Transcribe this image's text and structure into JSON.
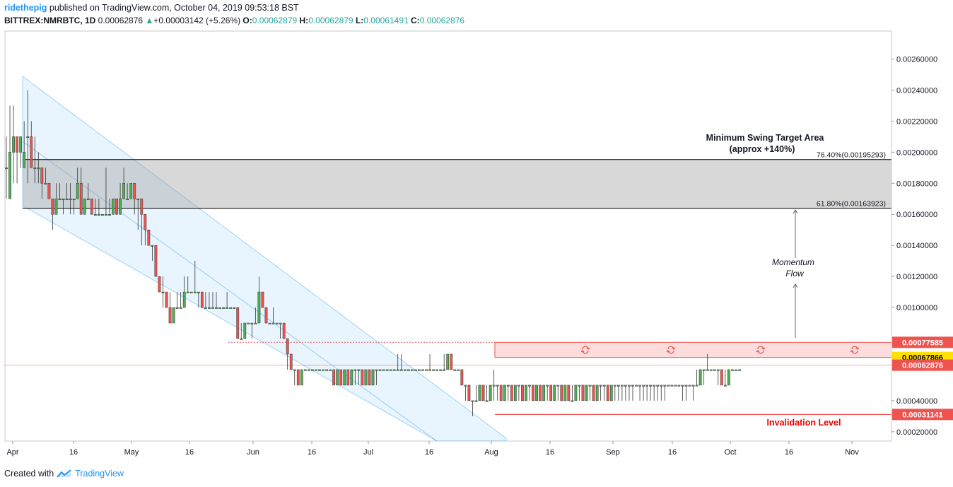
{
  "header": {
    "user": "ridethepig",
    "published": "published on TradingView.com, October 04, 2019 09:53:18 BST",
    "symbol": "BITTREX:NMRBTC, 1D",
    "last": "0.00062876",
    "change_arrow": "▲",
    "change": "+0.00003142 (+5.26%)",
    "o_label": "O:",
    "o": "0.00062879",
    "h_label": "H:",
    "h": "0.00062879",
    "l_label": "L:",
    "l": "0.00061491",
    "c_label": "C:",
    "c": "0.00062876"
  },
  "footer": {
    "created_with": "Created with",
    "brand": "TradingView"
  },
  "colors": {
    "up": "#4caf50",
    "down": "#ef5350",
    "accent": "#2196f3",
    "zone": "#d3d3d3",
    "resistance": "#ef5350",
    "current_line": "#ffe000"
  },
  "chart_data": {
    "type": "candlestick",
    "y_axis": {
      "ticks": [
        0.0002,
        0.0004,
        0.001,
        0.0012,
        0.0014,
        0.0016,
        0.0018,
        0.002,
        0.0022,
        0.0024,
        0.0026
      ],
      "tick_labels": [
        "0.00020000",
        "0.00040000",
        "0.00100000",
        "0.00120000",
        "0.00140000",
        "0.00160000",
        "0.00180000",
        "0.00200000",
        "0.00220000",
        "0.00240000",
        "0.00260000"
      ],
      "range": [
        0.00014,
        0.00278
      ]
    },
    "x_axis": {
      "labels": [
        "Apr",
        "16",
        "May",
        "16",
        "Jun",
        "16",
        "Jul",
        "16",
        "Aug",
        "16",
        "Sep",
        "16",
        "Oct",
        "16",
        "Nov"
      ]
    },
    "price_tags": [
      {
        "label": "0.00077585",
        "value": 0.00077585,
        "style": "red"
      },
      {
        "label": "0.00067866",
        "value": 0.00067866,
        "style": "yellow"
      },
      {
        "label": "0.00062876",
        "value": 0.00062876,
        "style": "red"
      },
      {
        "label": "0.00031141",
        "value": 0.00031141,
        "style": "red"
      }
    ],
    "fib_levels": [
      {
        "label": "76.40%(0.00195293)",
        "value": 0.00195293
      },
      {
        "label": "61.80%(0.00163923)",
        "value": 0.00163923
      }
    ],
    "annotations": {
      "target_title": "Minimum Swing Target Area",
      "target_sub": "(approx +140%)",
      "momentum_1": "Momentum",
      "momentum_2": "Flow",
      "invalidation": "Invalidation Level"
    },
    "candles": [
      [
        0.0019,
        0.0019,
        0.0021,
        0.0017
      ],
      [
        0.0017,
        0.002,
        0.0023,
        0.0017
      ],
      [
        0.002,
        0.0021,
        0.0023,
        0.0018
      ],
      [
        0.0021,
        0.002,
        0.0021,
        0.0018
      ],
      [
        0.002,
        0.0021,
        0.0021,
        0.0019
      ],
      [
        0.0019,
        0.002,
        0.0022,
        0.0019
      ],
      [
        0.0021,
        0.0021,
        0.0024,
        0.0018
      ],
      [
        0.0021,
        0.0019,
        0.0022,
        0.0019
      ],
      [
        0.0019,
        0.0019,
        0.0021,
        0.0018
      ],
      [
        0.0019,
        0.0019,
        0.002,
        0.0018
      ],
      [
        0.0019,
        0.0018,
        0.0019,
        0.0017
      ],
      [
        0.0018,
        0.0018,
        0.0019,
        0.0018
      ],
      [
        0.0018,
        0.0017,
        0.0018,
        0.0017
      ],
      [
        0.0017,
        0.0016,
        0.0017,
        0.0015
      ],
      [
        0.0016,
        0.0017,
        0.0018,
        0.0016
      ],
      [
        0.0017,
        0.0017,
        0.0018,
        0.0017
      ],
      [
        0.0017,
        0.0017,
        0.0017,
        0.0016
      ],
      [
        0.0017,
        0.0017,
        0.0018,
        0.0017
      ],
      [
        0.0017,
        0.0017,
        0.0018,
        0.0016
      ],
      [
        0.0017,
        0.0017,
        0.0017,
        0.0016
      ],
      [
        0.0017,
        0.0018,
        0.0019,
        0.0017
      ],
      [
        0.0018,
        0.0016,
        0.0019,
        0.0016
      ],
      [
        0.0016,
        0.0017,
        0.0017,
        0.0016
      ],
      [
        0.0017,
        0.0017,
        0.0018,
        0.0017
      ],
      [
        0.0017,
        0.0016,
        0.0017,
        0.0016
      ],
      [
        0.0016,
        0.0016,
        0.0017,
        0.0016
      ],
      [
        0.0016,
        0.0016,
        0.0017,
        0.0016
      ],
      [
        0.0016,
        0.0016,
        0.0016,
        0.0016
      ],
      [
        0.0016,
        0.0016,
        0.0019,
        0.0016
      ],
      [
        0.0016,
        0.0016,
        0.0017,
        0.0016
      ],
      [
        0.0016,
        0.0017,
        0.0017,
        0.0016
      ],
      [
        0.0017,
        0.0016,
        0.0017,
        0.0016
      ],
      [
        0.0016,
        0.0017,
        0.0018,
        0.0016
      ],
      [
        0.0017,
        0.0018,
        0.0019,
        0.0017
      ],
      [
        0.0017,
        0.0017,
        0.0018,
        0.0017
      ],
      [
        0.0017,
        0.0018,
        0.0018,
        0.0017
      ],
      [
        0.0018,
        0.0017,
        0.0018,
        0.0016
      ],
      [
        0.0017,
        0.0017,
        0.0017,
        0.0015
      ],
      [
        0.0017,
        0.0016,
        0.0017,
        0.0014
      ],
      [
        0.0016,
        0.0015,
        0.0015,
        0.0014
      ],
      [
        0.0015,
        0.0014,
        0.0015,
        0.0014
      ],
      [
        0.0014,
        0.0014,
        0.0014,
        0.0013
      ],
      [
        0.0014,
        0.0012,
        0.0014,
        0.0012
      ],
      [
        0.0012,
        0.0011,
        0.0012,
        0.0011
      ],
      [
        0.0011,
        0.0011,
        0.0012,
        0.001
      ],
      [
        0.0011,
        0.001,
        0.0011,
        0.001
      ],
      [
        0.001,
        0.0009,
        0.0011,
        0.0009
      ],
      [
        0.0009,
        0.001,
        0.001,
        0.0009
      ],
      [
        0.001,
        0.001,
        0.0011,
        0.001
      ],
      [
        0.001,
        0.001,
        0.0011,
        0.001
      ],
      [
        0.001,
        0.0011,
        0.0012,
        0.001
      ],
      [
        0.0011,
        0.0011,
        0.0012,
        0.0011
      ],
      [
        0.0011,
        0.0011,
        0.0011,
        0.0011
      ],
      [
        0.0011,
        0.0011,
        0.0013,
        0.0011
      ],
      [
        0.0011,
        0.0011,
        0.0011,
        0.001
      ],
      [
        0.0011,
        0.001,
        0.0011,
        0.001
      ],
      [
        0.001,
        0.001,
        0.0011,
        0.001
      ],
      [
        0.001,
        0.001,
        0.0011,
        0.001
      ],
      [
        0.001,
        0.001,
        0.0011,
        0.001
      ],
      [
        0.001,
        0.001,
        0.0011,
        0.001
      ],
      [
        0.001,
        0.001,
        0.001,
        0.001
      ],
      [
        0.001,
        0.001,
        0.001,
        0.001
      ],
      [
        0.001,
        0.001,
        0.0011,
        0.001
      ],
      [
        0.001,
        0.001,
        0.001,
        0.001
      ],
      [
        0.001,
        0.001,
        0.001,
        0.001
      ],
      [
        0.001,
        0.0008,
        0.001,
        0.0008
      ],
      [
        0.0008,
        0.0008,
        0.0009,
        0.0008
      ],
      [
        0.0008,
        0.0009,
        0.0009,
        0.0008
      ],
      [
        0.0009,
        0.0009,
        0.0009,
        0.0009
      ],
      [
        0.0009,
        0.0009,
        0.0009,
        0.0008
      ],
      [
        0.0009,
        0.0009,
        0.001,
        0.0009
      ],
      [
        0.0009,
        0.0011,
        0.0012,
        0.0009
      ],
      [
        0.0011,
        0.001,
        0.0011,
        0.001
      ],
      [
        0.001,
        0.0009,
        0.001,
        0.0009
      ],
      [
        0.0009,
        0.0009,
        0.0009,
        0.0009
      ],
      [
        0.0009,
        0.0009,
        0.001,
        0.0009
      ],
      [
        0.0009,
        0.0009,
        0.0009,
        0.0009
      ],
      [
        0.0009,
        0.0009,
        0.0009,
        0.0008
      ],
      [
        0.0009,
        0.0008,
        0.0008,
        0.0008
      ],
      [
        0.0008,
        0.0007,
        0.0008,
        0.0006
      ],
      [
        0.0007,
        0.0006,
        0.0007,
        0.0006
      ],
      [
        0.0006,
        0.0006,
        0.0006,
        0.0005
      ],
      [
        0.0006,
        0.0005,
        0.0006,
        0.0005
      ],
      [
        0.0005,
        0.0006,
        0.0006,
        0.0005
      ],
      [
        0.0006,
        0.0006,
        0.0006,
        0.0006
      ],
      [
        0.0006,
        0.0006,
        0.0006,
        0.0006
      ],
      [
        0.0006,
        0.0006,
        0.0006,
        0.0006
      ],
      [
        0.0006,
        0.0006,
        0.0006,
        0.0006
      ],
      [
        0.0006,
        0.0006,
        0.0006,
        0.0006
      ],
      [
        0.0006,
        0.0006,
        0.0006,
        0.0006
      ],
      [
        0.0006,
        0.0006,
        0.0006,
        0.0006
      ],
      [
        0.0006,
        0.0006,
        0.0006,
        0.0006
      ],
      [
        0.0006,
        0.0005,
        0.0006,
        0.0005
      ],
      [
        0.0005,
        0.0006,
        0.0006,
        0.0005
      ],
      [
        0.0006,
        0.0005,
        0.0006,
        0.0005
      ],
      [
        0.0005,
        0.0006,
        0.0006,
        0.0005
      ],
      [
        0.0006,
        0.0005,
        0.0006,
        0.0005
      ],
      [
        0.0005,
        0.0006,
        0.0006,
        0.0005
      ],
      [
        0.0006,
        0.0006,
        0.0006,
        0.0005
      ],
      [
        0.0006,
        0.0006,
        0.0006,
        0.0005
      ],
      [
        0.0006,
        0.0005,
        0.0006,
        0.0005
      ],
      [
        0.0005,
        0.0006,
        0.0006,
        0.0005
      ],
      [
        0.0006,
        0.0005,
        0.0006,
        0.0005
      ],
      [
        0.0005,
        0.0006,
        0.0006,
        0.0005
      ],
      [
        0.0006,
        0.0006,
        0.0006,
        0.0005
      ],
      [
        0.0006,
        0.0006,
        0.0006,
        0.0006
      ],
      [
        0.0006,
        0.0006,
        0.0006,
        0.0006
      ],
      [
        0.0006,
        0.0006,
        0.0006,
        0.0006
      ],
      [
        0.0006,
        0.0006,
        0.0006,
        0.0006
      ],
      [
        0.0006,
        0.0006,
        0.0006,
        0.0006
      ],
      [
        0.0006,
        0.0006,
        0.0007,
        0.0006
      ],
      [
        0.0006,
        0.0006,
        0.0007,
        0.0006
      ],
      [
        0.0006,
        0.0006,
        0.0006,
        0.0006
      ],
      [
        0.0006,
        0.0006,
        0.0006,
        0.0006
      ],
      [
        0.0006,
        0.0006,
        0.0006,
        0.0006
      ],
      [
        0.0006,
        0.0006,
        0.0006,
        0.0006
      ],
      [
        0.0006,
        0.0006,
        0.0006,
        0.0006
      ],
      [
        0.0006,
        0.0006,
        0.0006,
        0.0006
      ],
      [
        0.0006,
        0.0006,
        0.0006,
        0.0006
      ],
      [
        0.0006,
        0.0006,
        0.0007,
        0.0006
      ],
      [
        0.0006,
        0.0006,
        0.0006,
        0.0006
      ],
      [
        0.0006,
        0.0006,
        0.0006,
        0.0006
      ],
      [
        0.0006,
        0.0006,
        0.0006,
        0.0006
      ],
      [
        0.0006,
        0.0006,
        0.0007,
        0.0006
      ],
      [
        0.0006,
        0.0007,
        0.0007,
        0.0006
      ],
      [
        0.0007,
        0.0006,
        0.0007,
        0.0006
      ],
      [
        0.0006,
        0.0006,
        0.0006,
        0.0006
      ],
      [
        0.0006,
        0.0006,
        0.0006,
        0.0006
      ],
      [
        0.0006,
        0.0005,
        0.0006,
        0.0005
      ],
      [
        0.0005,
        0.0005,
        0.0005,
        0.0004
      ],
      [
        0.0005,
        0.0004,
        0.0005,
        0.0004
      ],
      [
        0.0004,
        0.0004,
        0.0004,
        0.0003
      ],
      [
        0.0004,
        0.0004,
        0.0005,
        0.0004
      ],
      [
        0.0004,
        0.0005,
        0.0005,
        0.0004
      ],
      [
        0.0005,
        0.0004,
        0.0005,
        0.0004
      ],
      [
        0.0004,
        0.0004,
        0.0005,
        0.0004
      ],
      [
        0.0004,
        0.0005,
        0.0005,
        0.0004
      ],
      [
        0.0005,
        0.0005,
        0.0006,
        0.0004
      ],
      [
        0.0005,
        0.0005,
        0.0005,
        0.0004
      ],
      [
        0.0005,
        0.0004,
        0.0005,
        0.0004
      ],
      [
        0.0004,
        0.0005,
        0.0005,
        0.0004
      ],
      [
        0.0005,
        0.0005,
        0.0005,
        0.0004
      ],
      [
        0.0005,
        0.0004,
        0.0005,
        0.0004
      ],
      [
        0.0004,
        0.0005,
        0.0005,
        0.0004
      ],
      [
        0.0005,
        0.0005,
        0.0005,
        0.0004
      ],
      [
        0.0005,
        0.0004,
        0.0005,
        0.0004
      ],
      [
        0.0004,
        0.0005,
        0.0005,
        0.0004
      ],
      [
        0.0005,
        0.0005,
        0.0005,
        0.0004
      ],
      [
        0.0005,
        0.0004,
        0.0005,
        0.0004
      ],
      [
        0.0004,
        0.0005,
        0.0005,
        0.0004
      ],
      [
        0.0005,
        0.0004,
        0.0005,
        0.0004
      ],
      [
        0.0004,
        0.0005,
        0.0005,
        0.0004
      ],
      [
        0.0005,
        0.0005,
        0.0005,
        0.0004
      ],
      [
        0.0005,
        0.0004,
        0.0005,
        0.0004
      ],
      [
        0.0004,
        0.0005,
        0.0005,
        0.0004
      ],
      [
        0.0005,
        0.0005,
        0.0005,
        0.0004
      ],
      [
        0.0005,
        0.0004,
        0.0005,
        0.0004
      ],
      [
        0.0004,
        0.0005,
        0.0005,
        0.0004
      ],
      [
        0.0005,
        0.0004,
        0.0005,
        0.0004
      ],
      [
        0.0004,
        0.0004,
        0.0005,
        0.0004
      ],
      [
        0.0004,
        0.0005,
        0.0005,
        0.0004
      ],
      [
        0.0005,
        0.0005,
        0.0005,
        0.0004
      ],
      [
        0.0005,
        0.0004,
        0.0005,
        0.0004
      ],
      [
        0.0004,
        0.0005,
        0.0005,
        0.0004
      ],
      [
        0.0005,
        0.0005,
        0.0005,
        0.0004
      ],
      [
        0.0005,
        0.0004,
        0.0005,
        0.0004
      ],
      [
        0.0004,
        0.0005,
        0.0005,
        0.0004
      ],
      [
        0.0005,
        0.0005,
        0.0005,
        0.0004
      ],
      [
        0.0005,
        0.0005,
        0.0005,
        0.0004
      ],
      [
        0.0005,
        0.0004,
        0.0005,
        0.0004
      ],
      [
        0.0004,
        0.0005,
        0.0005,
        0.0004
      ],
      [
        0.0005,
        0.0005,
        0.0005,
        0.0004
      ],
      [
        0.0005,
        0.0005,
        0.0005,
        0.0004
      ],
      [
        0.0005,
        0.0005,
        0.0005,
        0.0004
      ],
      [
        0.0005,
        0.0005,
        0.0005,
        0.0004
      ],
      [
        0.0005,
        0.0005,
        0.0005,
        0.0004
      ],
      [
        0.0005,
        0.0005,
        0.0005,
        0.0004
      ],
      [
        0.0005,
        0.0005,
        0.0005,
        0.0005
      ],
      [
        0.0005,
        0.0005,
        0.0005,
        0.0004
      ],
      [
        0.0005,
        0.0005,
        0.0005,
        0.0004
      ],
      [
        0.0005,
        0.0005,
        0.0005,
        0.0004
      ],
      [
        0.0005,
        0.0005,
        0.0005,
        0.0004
      ],
      [
        0.0005,
        0.0005,
        0.0005,
        0.0004
      ],
      [
        0.0005,
        0.0005,
        0.0005,
        0.0004
      ],
      [
        0.0005,
        0.0005,
        0.0005,
        0.0004
      ],
      [
        0.0005,
        0.0005,
        0.0005,
        0.0004
      ],
      [
        0.0005,
        0.0005,
        0.0005,
        0.0005
      ],
      [
        0.0005,
        0.0005,
        0.0005,
        0.0005
      ],
      [
        0.0005,
        0.0005,
        0.0005,
        0.0005
      ],
      [
        0.0005,
        0.0005,
        0.0005,
        0.0005
      ],
      [
        0.0005,
        0.0005,
        0.0005,
        0.0004
      ],
      [
        0.0005,
        0.0005,
        0.0005,
        0.0004
      ],
      [
        0.0005,
        0.0005,
        0.0005,
        0.0005
      ],
      [
        0.0005,
        0.0005,
        0.0005,
        0.0004
      ],
      [
        0.0005,
        0.0005,
        0.0006,
        0.0005
      ],
      [
        0.0005,
        0.0006,
        0.0006,
        0.0005
      ],
      [
        0.0006,
        0.0006,
        0.0006,
        0.0005
      ],
      [
        0.0006,
        0.0006,
        0.0007,
        0.0006
      ],
      [
        0.0006,
        0.0006,
        0.0006,
        0.0006
      ],
      [
        0.0006,
        0.0006,
        0.0006,
        0.0006
      ],
      [
        0.0006,
        0.0006,
        0.0006,
        0.0005
      ],
      [
        0.0006,
        0.0005,
        0.0006,
        0.0005
      ],
      [
        0.0005,
        0.0005,
        0.0006,
        0.0005
      ],
      [
        0.0005,
        0.0006,
        0.0006,
        0.0005
      ],
      [
        0.0006,
        0.0006,
        0.0006,
        0.0006
      ],
      [
        0.0006,
        0.0006,
        0.0006,
        0.0006
      ],
      [
        0.0006,
        0.0006,
        0.0006,
        0.0006
      ]
    ]
  }
}
